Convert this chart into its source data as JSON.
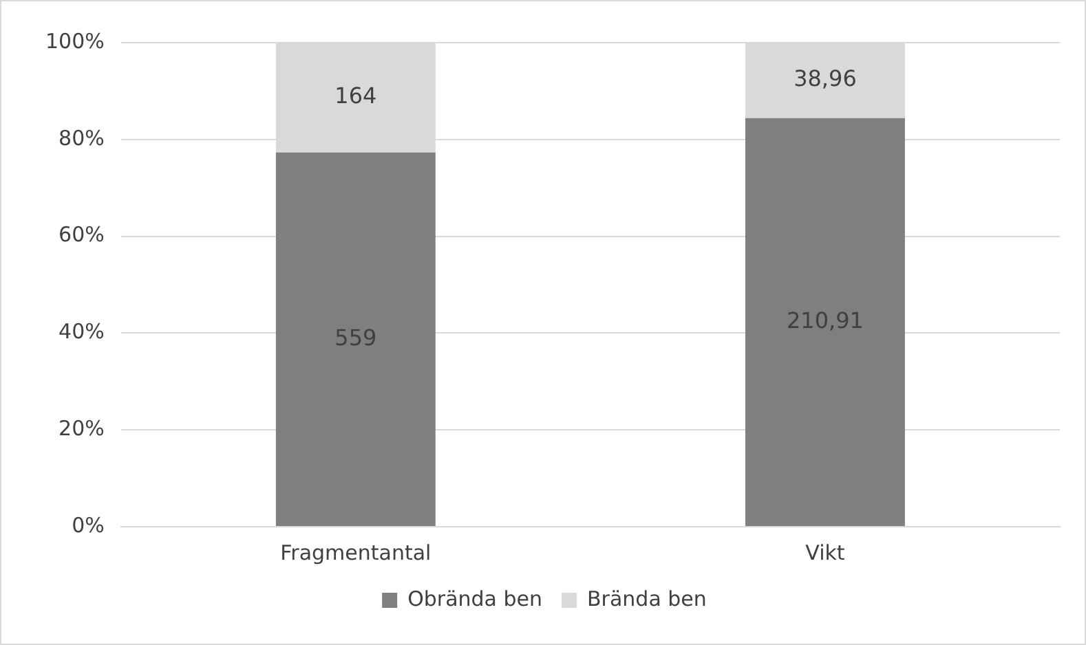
{
  "chart_data": {
    "type": "bar",
    "categories": [
      "Fragmentantal",
      "Vikt"
    ],
    "stacked": true,
    "series": [
      {
        "name": "Obrända ben",
        "color": "#7f7f7f",
        "values": [
          77.3,
          84.4
        ]
      },
      {
        "name": "Brända ben",
        "color": "#d9d9d9",
        "values": [
          22.7,
          15.6
        ]
      }
    ],
    "annotations": [
      "559",
      "210,91",
      "164",
      "38,96"
    ],
    "ylim": [
      0,
      100
    ],
    "yticks": [
      {
        "value": 0,
        "label": "0%"
      },
      {
        "value": 20,
        "label": "20%"
      },
      {
        "value": 40,
        "label": "40%"
      },
      {
        "value": 60,
        "label": "60%"
      },
      {
        "value": 80,
        "label": "80%"
      },
      {
        "value": 100,
        "label": "100%"
      }
    ],
    "grid": "y",
    "legend": "bottom"
  }
}
